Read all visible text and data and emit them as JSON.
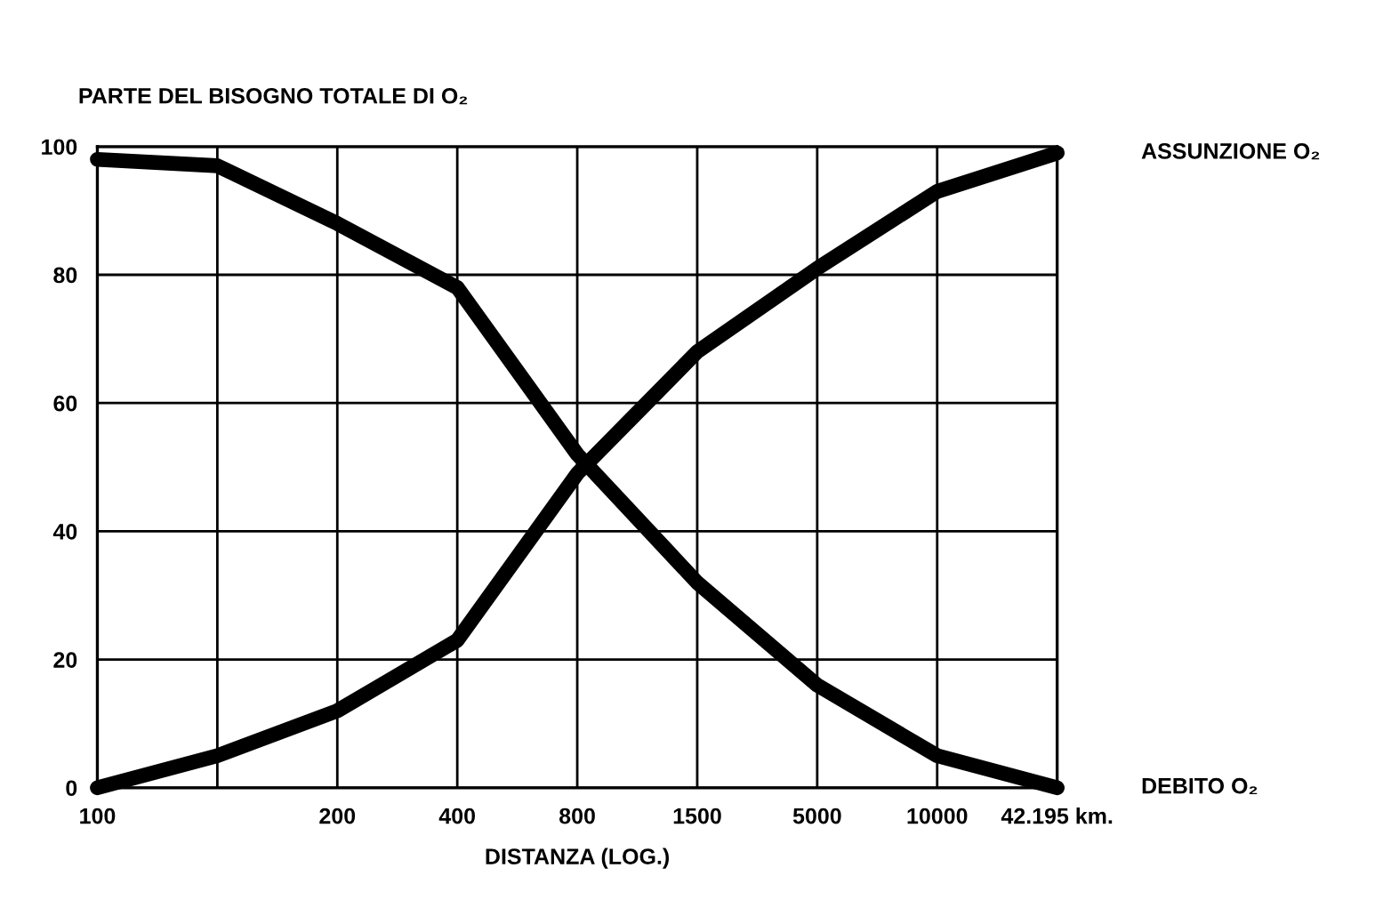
{
  "chart_data": {
    "type": "line",
    "ylabel": "PARTE DEL BISOGNO TOTALE DI O₂",
    "xlabel": "DISTANZA (LOG.)",
    "categories": [
      "100",
      null,
      "200",
      "400",
      "800",
      "1500",
      "5000",
      "10000",
      "42.195 km."
    ],
    "series": [
      {
        "name": "ASSUNZIONE O₂",
        "color": "#000000",
        "values": [
          0,
          5,
          12,
          23,
          49,
          68,
          81,
          93,
          99
        ]
      },
      {
        "name": "DEBITO O₂",
        "color": "#000000",
        "values": [
          98,
          97,
          88,
          78,
          52,
          32,
          16,
          5,
          0
        ]
      }
    ],
    "ylim": [
      0,
      100
    ],
    "yticks": [
      0,
      20,
      40,
      60,
      80,
      100
    ],
    "grid": true,
    "marker": "none",
    "line_style": "solid"
  }
}
